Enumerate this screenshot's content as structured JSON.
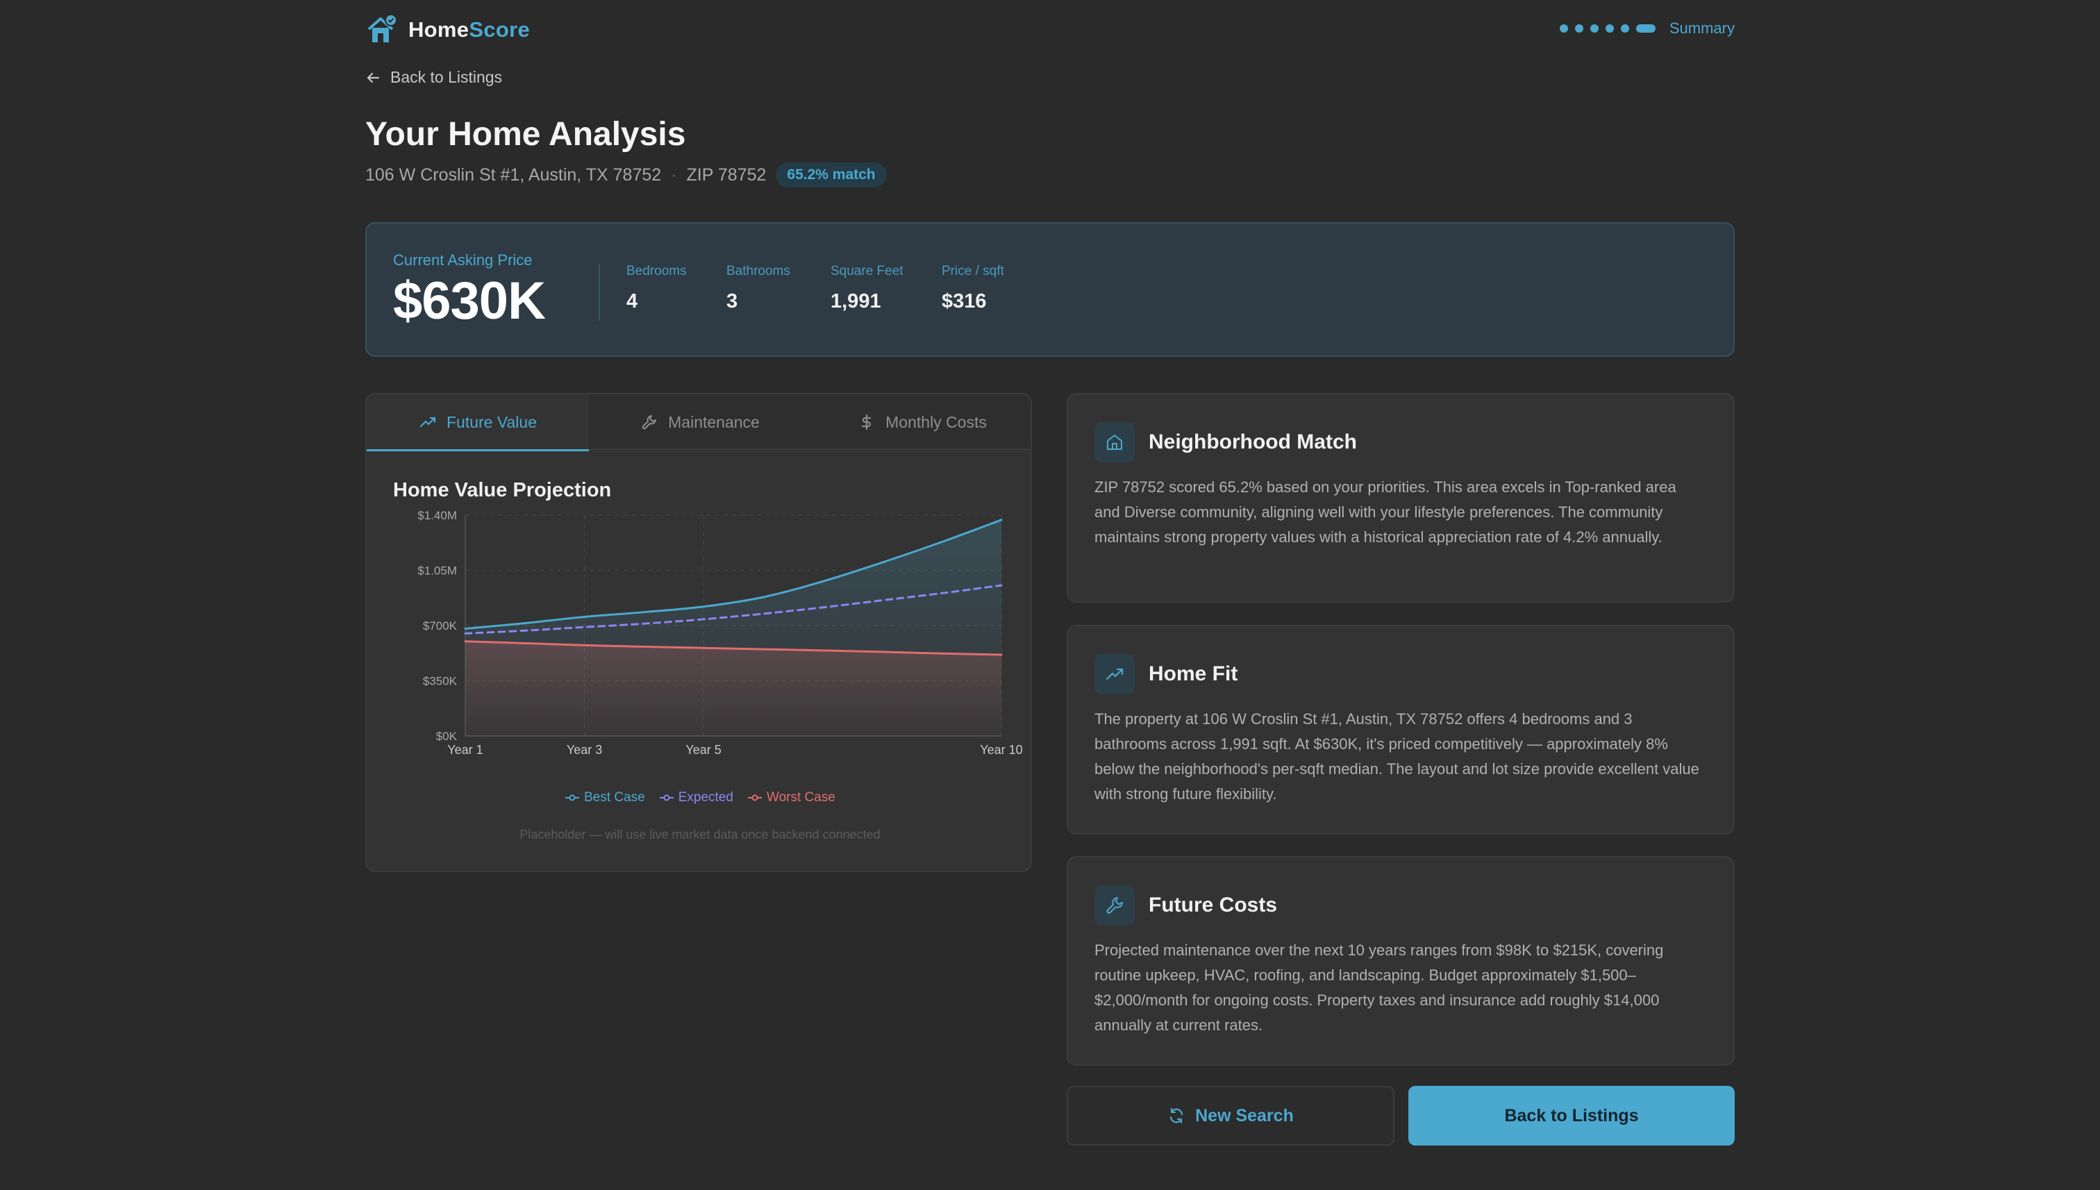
{
  "header": {
    "brand_home": "Home",
    "brand_score": "Score",
    "progress_step_count": 6,
    "progress_label": "Summary"
  },
  "back_link": "Back to Listings",
  "page": {
    "title": "Your Home Analysis",
    "address": "106 W Croslin St #1, Austin, TX 78752",
    "zip": "ZIP 78752",
    "match_badge": "65.2% match"
  },
  "price_card": {
    "label": "Current Asking Price",
    "value": "$630K",
    "stats": [
      {
        "label": "Bedrooms",
        "value": "4"
      },
      {
        "label": "Bathrooms",
        "value": "3"
      },
      {
        "label": "Square Feet",
        "value": "1,991"
      },
      {
        "label": "Price / sqft",
        "value": "$316"
      }
    ]
  },
  "tabs": [
    {
      "label": "Future Value",
      "icon": "trending-up-icon",
      "active": true
    },
    {
      "label": "Maintenance",
      "icon": "wrench-icon",
      "active": false
    },
    {
      "label": "Monthly Costs",
      "icon": "dollar-icon",
      "active": false
    }
  ],
  "chart_data": {
    "type": "line",
    "title": "Home Value Projection",
    "x": [
      1,
      2,
      3,
      4,
      5,
      6,
      7,
      8,
      9,
      10
    ],
    "x_tick_labels": [
      "Year 1",
      "Year 3",
      "Year 5",
      "Year 10"
    ],
    "x_tick_values": [
      1,
      3,
      5,
      10
    ],
    "xlim": [
      1,
      10
    ],
    "ylim": [
      0,
      1400000
    ],
    "y_ticks": [
      0,
      350000,
      700000,
      1050000,
      1400000
    ],
    "y_tick_labels": [
      "$0K",
      "$350K",
      "$700K",
      "$1.05M",
      "$1.40M"
    ],
    "grid": true,
    "legend_position": "bottom",
    "series": [
      {
        "name": "Best Case",
        "color": "#4ba8cf",
        "style": "solid",
        "fill": true,
        "values": [
          680000,
          715000,
          755000,
          785000,
          820000,
          880000,
          980000,
          1100000,
          1230000,
          1370000
        ]
      },
      {
        "name": "Expected",
        "color": "#8b85f0",
        "style": "dashed",
        "fill": false,
        "values": [
          650000,
          668000,
          690000,
          712000,
          740000,
          775000,
          815000,
          860000,
          905000,
          955000
        ]
      },
      {
        "name": "Worst Case",
        "color": "#e26d6d",
        "style": "solid",
        "fill": true,
        "values": [
          600000,
          588000,
          575000,
          566000,
          558000,
          550000,
          542000,
          533000,
          523000,
          515000
        ]
      }
    ]
  },
  "chart_note": "Placeholder — will use live market data once backend connected",
  "cards": [
    {
      "title": "Neighborhood Match",
      "icon": "house-icon",
      "body": "ZIP 78752 scored 65.2% based on your priorities. This area excels in Top-ranked area and Diverse community, aligning well with your lifestyle preferences. The community maintains strong property values with a historical appreciation rate of 4.2% annually."
    },
    {
      "title": "Home Fit",
      "icon": "trending-up-icon",
      "body": "The property at 106 W Croslin St #1, Austin, TX 78752 offers 4 bedrooms and 3 bathrooms across 1,991 sqft. At $630K, it's priced competitively — approximately 8% below the neighborhood's per-sqft median. The layout and lot size provide excellent value with strong future flexibility."
    },
    {
      "title": "Future Costs",
      "icon": "wrench-icon",
      "body": "Projected maintenance over the next 10 years ranges from $98K to $215K, covering routine upkeep, HVAC, roofing, and landscaping. Budget approximately $1,500–$2,000/month for ongoing costs. Property taxes and insurance add roughly $14,000 annually at current rates."
    }
  ],
  "buttons": {
    "new_search": "New Search",
    "back_to_listings": "Back to Listings"
  },
  "colors": {
    "accent": "#4ba8cf",
    "background": "#2a2a2a",
    "card": "#333333"
  }
}
